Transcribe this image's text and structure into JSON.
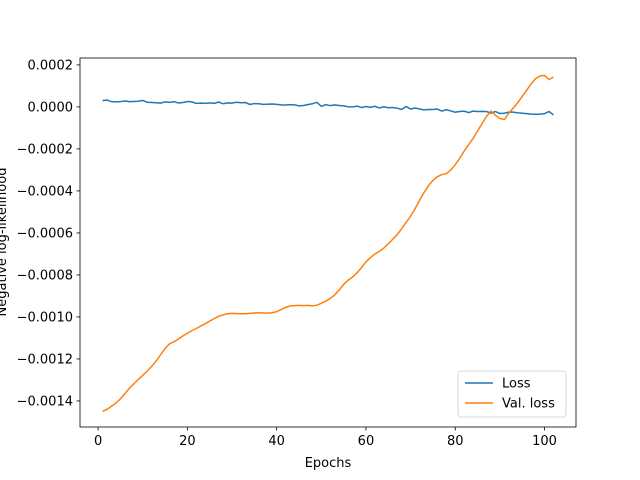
{
  "chart_data": {
    "type": "line",
    "x_label": "Epochs",
    "y_label": "Negative log-likelihood",
    "x": [
      1,
      2,
      3,
      4,
      5,
      6,
      7,
      8,
      9,
      10,
      11,
      12,
      13,
      14,
      15,
      16,
      17,
      18,
      19,
      20,
      21,
      22,
      23,
      24,
      25,
      26,
      27,
      28,
      29,
      30,
      31,
      32,
      33,
      34,
      35,
      36,
      37,
      38,
      39,
      40,
      41,
      42,
      43,
      44,
      45,
      46,
      47,
      48,
      49,
      50,
      51,
      52,
      53,
      54,
      55,
      56,
      57,
      58,
      59,
      60,
      61,
      62,
      63,
      64,
      65,
      66,
      67,
      68,
      69,
      70,
      71,
      72,
      73,
      74,
      75,
      76,
      77,
      78,
      79,
      80,
      81,
      82,
      83,
      84,
      85,
      86,
      87,
      88,
      89,
      90,
      91,
      92,
      93,
      94,
      95,
      96,
      97,
      98,
      99,
      100,
      101,
      102
    ],
    "series": [
      {
        "name": "Loss",
        "color": "#1f77b4",
        "values": [
          3e-05,
          3.3e-05,
          2.5e-05,
          2.4e-05,
          2.5e-05,
          2.9e-05,
          2.5e-05,
          2.6e-05,
          2.7e-05,
          3.1e-05,
          2.2e-05,
          2.1e-05,
          2e-05,
          1.8e-05,
          2.4e-05,
          2.2e-05,
          2.5e-05,
          1.9e-05,
          2.1e-05,
          2.6e-05,
          2.4e-05,
          1.7e-05,
          1.8e-05,
          1.7e-05,
          1.9e-05,
          1.7e-05,
          2.3e-05,
          1.5e-05,
          1.9e-05,
          1.8e-05,
          2.2e-05,
          2e-05,
          2.1e-05,
          1.2e-05,
          1.6e-05,
          1.5e-05,
          1.2e-05,
          1.3e-05,
          1.4e-05,
          1.2e-05,
          1e-05,
          9e-06,
          1.1e-05,
          1e-05,
          5e-06,
          7e-06,
          1.1e-05,
          1.5e-05,
          2.2e-05,
          3e-06,
          1.1e-05,
          6e-06,
          1e-05,
          7e-06,
          5e-06,
          1e-06,
          0.0,
          4e-06,
          -3e-06,
          2e-06,
          -2e-06,
          3e-06,
          -5e-06,
          1e-06,
          -4e-06,
          -3e-06,
          -6e-06,
          -1.2e-05,
          2e-06,
          -1e-05,
          -5e-06,
          -1e-05,
          -1.4e-05,
          -1.2e-05,
          -1.2e-05,
          -1e-05,
          -2e-05,
          -1.3e-05,
          -1.9e-05,
          -2.5e-05,
          -2.2e-05,
          -2e-05,
          -2.7e-05,
          -2e-05,
          -2.2e-05,
          -2.1e-05,
          -2.2e-05,
          -3e-05,
          -2.2e-05,
          -3.1e-05,
          -3e-05,
          -2.5e-05,
          -2.5e-05,
          -2.8e-05,
          -3e-05,
          -3.2e-05,
          -3.4e-05,
          -3.5e-05,
          -3.4e-05,
          -3.2e-05,
          -2.2e-05,
          -3.8e-05
        ]
      },
      {
        "name": "Val. loss",
        "color": "#ff7f0e",
        "values": [
          -0.00145,
          -0.00144,
          -0.001425,
          -0.00141,
          -0.00139,
          -0.001365,
          -0.00134,
          -0.001318,
          -0.001298,
          -0.001278,
          -0.001258,
          -0.001235,
          -0.00121,
          -0.00118,
          -0.00115,
          -0.001128,
          -0.001118,
          -0.001105,
          -0.00109,
          -0.001078,
          -0.001065,
          -0.001055,
          -0.001043,
          -0.001032,
          -0.00102,
          -0.001008,
          -0.000997,
          -0.00099,
          -0.000985,
          -0.000983,
          -0.000984,
          -0.000985,
          -0.000985,
          -0.000983,
          -0.000981,
          -0.00098,
          -0.000981,
          -0.000982,
          -0.00098,
          -0.000975,
          -0.000965,
          -0.000955,
          -0.000948,
          -0.000946,
          -0.000945,
          -0.000946,
          -0.000945,
          -0.000947,
          -0.000944,
          -0.000935,
          -0.000925,
          -0.000912,
          -0.000895,
          -0.000872,
          -0.000845,
          -0.000825,
          -0.00081,
          -0.00079,
          -0.000765,
          -0.000738,
          -0.000718,
          -0.0007,
          -0.000688,
          -0.000672,
          -0.000652,
          -0.00063,
          -0.000608,
          -0.00058,
          -0.00055,
          -0.00052,
          -0.000485,
          -0.000445,
          -0.000408,
          -0.000375,
          -0.00035,
          -0.000332,
          -0.000322,
          -0.000318,
          -0.0003,
          -0.000275,
          -0.000245,
          -0.00021,
          -0.00018,
          -0.00015,
          -0.000115,
          -8e-05,
          -4.5e-05,
          -2e-05,
          -4e-05,
          -5.5e-05,
          -6e-05,
          -3e-05,
          -5e-06,
          2e-05,
          5e-05,
          8e-05,
          0.00011,
          0.000135,
          0.000148,
          0.00015,
          0.00013,
          0.000142
        ]
      }
    ],
    "xlim": [
      -4.05,
      107.05
    ],
    "xticks": [
      0,
      20,
      40,
      60,
      80,
      100
    ],
    "ylim": [
      -0.001524,
      0.000233
    ],
    "yticks": [
      {
        "value": -0.0014,
        "label": "−0.0014"
      },
      {
        "value": -0.0012,
        "label": "−0.0012"
      },
      {
        "value": -0.001,
        "label": "−0.0010"
      },
      {
        "value": -0.0008,
        "label": "−0.0008"
      },
      {
        "value": -0.0006,
        "label": "−0.0006"
      },
      {
        "value": -0.0004,
        "label": "−0.0004"
      },
      {
        "value": -0.0002,
        "label": "−0.0002"
      },
      {
        "value": 0,
        "label": "0.0000"
      },
      {
        "value": 0.0002,
        "label": "0.0002"
      }
    ],
    "legend": "lower right",
    "grid": false
  }
}
